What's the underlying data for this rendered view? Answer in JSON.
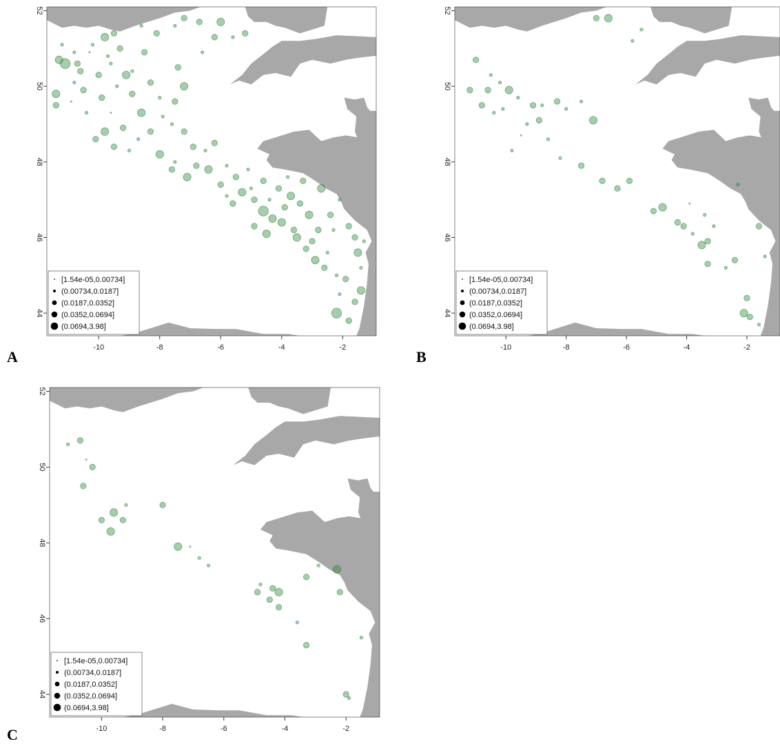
{
  "colors": {
    "land": "#a8a8a8",
    "point_fill": "#2e8b3a",
    "point_stroke": "#1f6e2a",
    "axis": "#333333",
    "legend_symbol": "#000000"
  },
  "legend": {
    "title": "",
    "classes": [
      {
        "label": "[1.54e-05,0.00734]",
        "size_rank": 1
      },
      {
        "label": "(0.00734,0.0187]",
        "size_rank": 2
      },
      {
        "label": "(0.0187,0.0352]",
        "size_rank": 3
      },
      {
        "label": "(0.0352,0.0694]",
        "size_rank": 4
      },
      {
        "label": "(0.0694,3.98]",
        "size_rank": 5
      }
    ]
  },
  "axes": {
    "x_ticks": [
      "-10",
      "-8",
      "-6",
      "-4",
      "-2"
    ],
    "x_tick_values": [
      -10,
      -8,
      -6,
      -4,
      -2
    ],
    "y_ticks": [
      "44",
      "46",
      "48",
      "50",
      "52"
    ],
    "y_tick_values": [
      44,
      46,
      48,
      50,
      52
    ],
    "xlim": [
      -11.7,
      -0.9
    ],
    "ylim": [
      43.4,
      52.1
    ]
  },
  "chart_data": [
    {
      "type": "scatter",
      "panel": "A",
      "points": [
        [
          -11.3,
          50.7,
          4
        ],
        [
          -11.1,
          50.6,
          5
        ],
        [
          -11.4,
          49.8,
          4
        ],
        [
          -11.4,
          49.5,
          3
        ],
        [
          -11.2,
          51.1,
          2
        ],
        [
          -10.8,
          50.9,
          2
        ],
        [
          -10.6,
          50.4,
          3
        ],
        [
          -10.3,
          50.9,
          1
        ],
        [
          -10.8,
          50.1,
          2
        ],
        [
          -10.5,
          49.9,
          3
        ],
        [
          -10.9,
          49.6,
          1
        ],
        [
          -10.4,
          49.3,
          2
        ],
        [
          -10.0,
          50.3,
          3
        ],
        [
          -10.2,
          51.1,
          2
        ],
        [
          -9.8,
          51.3,
          4
        ],
        [
          -9.5,
          51.4,
          3
        ],
        [
          -9.3,
          51.0,
          3
        ],
        [
          -9.6,
          50.6,
          2
        ],
        [
          -9.1,
          50.3,
          4
        ],
        [
          -9.4,
          50.0,
          2
        ],
        [
          -9.9,
          49.7,
          3
        ],
        [
          -9.6,
          49.3,
          1
        ],
        [
          -9.8,
          48.8,
          4
        ],
        [
          -9.2,
          48.9,
          3
        ],
        [
          -10.1,
          48.6,
          3
        ],
        [
          -9.5,
          48.4,
          3
        ],
        [
          -9.0,
          48.3,
          2
        ],
        [
          -8.7,
          48.6,
          2
        ],
        [
          -8.3,
          48.8,
          3
        ],
        [
          -8.6,
          49.3,
          4
        ],
        [
          -8.0,
          49.7,
          2
        ],
        [
          -8.3,
          50.1,
          3
        ],
        [
          -8.9,
          50.4,
          2
        ],
        [
          -8.5,
          50.9,
          3
        ],
        [
          -8.1,
          51.4,
          3
        ],
        [
          -8.6,
          51.6,
          2
        ],
        [
          -7.5,
          51.6,
          2
        ],
        [
          -7.2,
          51.8,
          3
        ],
        [
          -6.7,
          51.7,
          3
        ],
        [
          -6.0,
          51.7,
          4
        ],
        [
          -6.2,
          51.3,
          3
        ],
        [
          -5.6,
          51.3,
          2
        ],
        [
          -5.2,
          51.4,
          3
        ],
        [
          -6.6,
          50.9,
          2
        ],
        [
          -7.4,
          50.5,
          3
        ],
        [
          -7.2,
          50.0,
          4
        ],
        [
          -7.5,
          49.6,
          3
        ],
        [
          -7.6,
          49.0,
          2
        ],
        [
          -7.2,
          48.8,
          3
        ],
        [
          -8.0,
          48.2,
          4
        ],
        [
          -7.6,
          47.8,
          3
        ],
        [
          -7.1,
          47.6,
          4
        ],
        [
          -7.5,
          48.0,
          2
        ],
        [
          -6.8,
          47.9,
          3
        ],
        [
          -6.5,
          48.3,
          2
        ],
        [
          -6.2,
          48.5,
          3
        ],
        [
          -6.4,
          47.8,
          4
        ],
        [
          -6.0,
          47.4,
          3
        ],
        [
          -5.8,
          47.9,
          2
        ],
        [
          -5.5,
          47.6,
          3
        ],
        [
          -5.1,
          47.8,
          2
        ],
        [
          -5.3,
          47.2,
          4
        ],
        [
          -4.9,
          47.0,
          3
        ],
        [
          -4.6,
          46.7,
          5
        ],
        [
          -4.3,
          46.5,
          4
        ],
        [
          -4.0,
          46.4,
          4
        ],
        [
          -3.6,
          46.2,
          3
        ],
        [
          -3.9,
          46.8,
          3
        ],
        [
          -4.4,
          47.0,
          2
        ],
        [
          -4.1,
          47.3,
          3
        ],
        [
          -3.7,
          47.1,
          4
        ],
        [
          -3.4,
          46.9,
          3
        ],
        [
          -3.1,
          46.6,
          4
        ],
        [
          -3.5,
          46.0,
          4
        ],
        [
          -3.2,
          45.7,
          3
        ],
        [
          -2.9,
          45.4,
          4
        ],
        [
          -2.6,
          45.2,
          3
        ],
        [
          -2.5,
          45.6,
          2
        ],
        [
          -2.8,
          46.2,
          3
        ],
        [
          -2.4,
          46.6,
          3
        ],
        [
          -2.7,
          47.3,
          4
        ],
        [
          -3.3,
          47.5,
          3
        ],
        [
          -3.8,
          47.6,
          2
        ],
        [
          -4.6,
          47.5,
          3
        ],
        [
          -5.0,
          47.3,
          2
        ],
        [
          -5.6,
          46.9,
          3
        ],
        [
          -2.1,
          47.0,
          2
        ],
        [
          -1.8,
          46.3,
          3
        ],
        [
          -1.5,
          45.6,
          4
        ],
        [
          -1.4,
          45.2,
          2
        ],
        [
          -1.9,
          44.9,
          3
        ],
        [
          -2.1,
          44.5,
          2
        ],
        [
          -1.6,
          44.3,
          3
        ],
        [
          -2.2,
          44.0,
          5
        ],
        [
          -1.8,
          43.8,
          3
        ],
        [
          -1.4,
          44.6,
          4
        ],
        [
          -1.3,
          45.9,
          2
        ],
        [
          -1.6,
          46.0,
          3
        ],
        [
          -2.3,
          46.2,
          2
        ],
        [
          -10.7,
          50.6,
          3
        ],
        [
          -9.7,
          50.8,
          2
        ],
        [
          -8.9,
          49.8,
          3
        ],
        [
          -7.9,
          49.2,
          2
        ],
        [
          -6.9,
          48.4,
          3
        ],
        [
          -4.9,
          46.3,
          3
        ],
        [
          -4.5,
          46.1,
          4
        ],
        [
          -3.0,
          45.9,
          3
        ],
        [
          -2.2,
          45.0,
          2
        ],
        [
          -5.8,
          47.1,
          2
        ]
      ]
    },
    {
      "type": "scatter",
      "panel": "B",
      "points": [
        [
          -11.2,
          49.9,
          3
        ],
        [
          -11.0,
          50.7,
          3
        ],
        [
          -10.5,
          50.3,
          2
        ],
        [
          -10.6,
          49.9,
          3
        ],
        [
          -10.2,
          50.1,
          2
        ],
        [
          -10.1,
          49.4,
          2
        ],
        [
          -10.8,
          49.5,
          3
        ],
        [
          -10.4,
          49.3,
          2
        ],
        [
          -9.9,
          49.9,
          4
        ],
        [
          -9.6,
          49.7,
          2
        ],
        [
          -9.1,
          49.5,
          3
        ],
        [
          -8.8,
          49.5,
          2
        ],
        [
          -8.3,
          49.6,
          3
        ],
        [
          -8.0,
          49.4,
          2
        ],
        [
          -8.9,
          49.1,
          3
        ],
        [
          -9.3,
          49.0,
          2
        ],
        [
          -9.5,
          48.7,
          1
        ],
        [
          -9.8,
          48.3,
          2
        ],
        [
          -8.6,
          48.6,
          2
        ],
        [
          -8.2,
          48.1,
          2
        ],
        [
          -7.5,
          47.9,
          3
        ],
        [
          -7.5,
          49.6,
          2
        ],
        [
          -7.1,
          49.1,
          4
        ],
        [
          -7.0,
          51.8,
          3
        ],
        [
          -6.6,
          51.8,
          4
        ],
        [
          -5.5,
          51.5,
          2
        ],
        [
          -5.8,
          51.2,
          2
        ],
        [
          -6.8,
          47.5,
          3
        ],
        [
          -6.3,
          47.3,
          3
        ],
        [
          -5.9,
          47.5,
          3
        ],
        [
          -4.8,
          46.8,
          4
        ],
        [
          -5.1,
          46.7,
          3
        ],
        [
          -4.3,
          46.4,
          3
        ],
        [
          -4.1,
          46.3,
          3
        ],
        [
          -3.8,
          46.1,
          2
        ],
        [
          -3.5,
          45.8,
          4
        ],
        [
          -3.3,
          45.9,
          3
        ],
        [
          -3.3,
          45.3,
          3
        ],
        [
          -2.7,
          45.2,
          2
        ],
        [
          -2.4,
          45.4,
          3
        ],
        [
          -3.1,
          46.3,
          2
        ],
        [
          -3.9,
          46.9,
          1
        ],
        [
          -2.3,
          47.4,
          2
        ],
        [
          -1.6,
          46.3,
          3
        ],
        [
          -1.4,
          45.5,
          2
        ],
        [
          -2.0,
          44.4,
          3
        ],
        [
          -2.1,
          44.0,
          4
        ],
        [
          -1.9,
          43.9,
          3
        ],
        [
          -1.6,
          43.7,
          2
        ],
        [
          -3.4,
          46.6,
          2
        ]
      ]
    },
    {
      "type": "scatter",
      "panel": "C",
      "points": [
        [
          -11.1,
          50.6,
          2
        ],
        [
          -10.7,
          50.7,
          3
        ],
        [
          -10.5,
          50.2,
          1
        ],
        [
          -10.3,
          50.0,
          3
        ],
        [
          -10.6,
          49.5,
          3
        ],
        [
          -10.0,
          48.6,
          3
        ],
        [
          -9.6,
          48.8,
          4
        ],
        [
          -9.3,
          48.6,
          3
        ],
        [
          -9.2,
          49.0,
          2
        ],
        [
          -9.7,
          48.3,
          4
        ],
        [
          -8.0,
          49.0,
          3
        ],
        [
          -7.5,
          47.9,
          4
        ],
        [
          -7.1,
          47.9,
          1
        ],
        [
          -6.8,
          47.6,
          2
        ],
        [
          -6.5,
          47.4,
          2
        ],
        [
          -4.9,
          46.7,
          3
        ],
        [
          -4.8,
          46.9,
          2
        ],
        [
          -4.4,
          46.8,
          3
        ],
        [
          -4.2,
          46.7,
          4
        ],
        [
          -4.5,
          46.5,
          3
        ],
        [
          -4.2,
          46.3,
          3
        ],
        [
          -3.3,
          47.1,
          3
        ],
        [
          -2.9,
          47.4,
          2
        ],
        [
          -2.3,
          47.3,
          4
        ],
        [
          -2.2,
          46.7,
          3
        ],
        [
          -3.3,
          45.3,
          3
        ],
        [
          -3.6,
          45.9,
          2
        ],
        [
          -1.5,
          45.5,
          2
        ],
        [
          -2.0,
          44.0,
          3
        ],
        [
          -1.9,
          43.9,
          2
        ]
      ]
    }
  ],
  "panels": [
    {
      "letter": "A",
      "left": 0,
      "top": 0
    },
    {
      "letter": "B",
      "left": 600,
      "top": 0
    },
    {
      "letter": "C",
      "left": 0,
      "top": 560
    }
  ]
}
